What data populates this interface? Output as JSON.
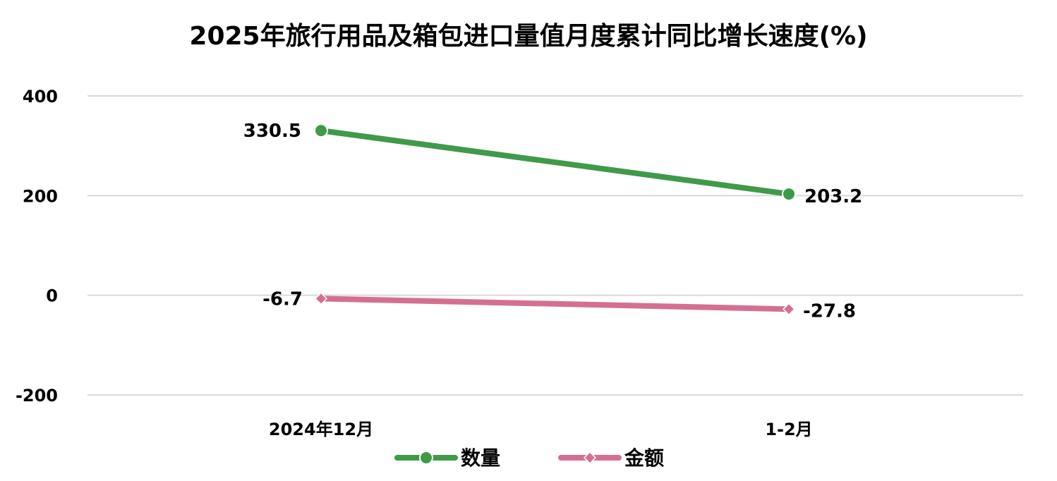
{
  "chart_data": {
    "type": "line",
    "title": "2025年旅行用品及箱包进口量值月度累计同比增长速度(%)",
    "xlabel": "",
    "ylabel": "",
    "categories": [
      "2024年12月",
      "1-2月"
    ],
    "ylim": [
      -200,
      400
    ],
    "yticks": [
      400,
      200,
      0,
      -200
    ],
    "ytick_labels": [
      "400",
      "200",
      "0",
      "-200"
    ],
    "grid": true,
    "legend_position": "bottom",
    "series": [
      {
        "name": "数量",
        "values": [
          330.5,
          203.2
        ],
        "labels": [
          "330.5",
          "203.2"
        ],
        "color": "#3f9a4a",
        "marker": "circle"
      },
      {
        "name": "金额",
        "values": [
          -6.7,
          -27.8
        ],
        "labels": [
          "-6.7",
          "-27.8"
        ],
        "color": "#d4708f",
        "marker": "diamond"
      }
    ]
  }
}
